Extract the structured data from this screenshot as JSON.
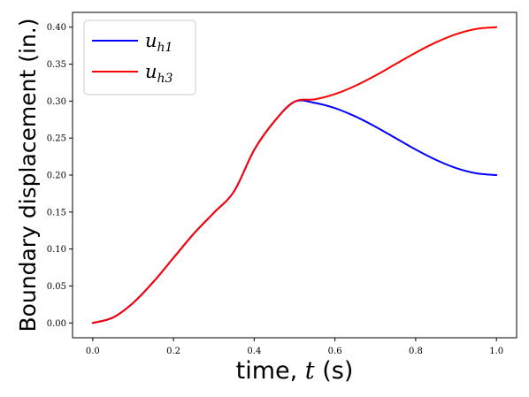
{
  "chart_data": {
    "type": "line",
    "title": "",
    "xlabel": "time, t (s)",
    "xlabel_parts": {
      "prefix": "time, ",
      "var": "t",
      "suffix": " (s)"
    },
    "ylabel": "Boundary displacement (in.)",
    "xlim": [
      0.0,
      1.0
    ],
    "ylim": [
      0.0,
      0.4
    ],
    "xticks": [
      "0.0",
      "0.2",
      "0.4",
      "0.6",
      "0.8",
      "1.0"
    ],
    "yticks": [
      "0.00",
      "0.05",
      "0.10",
      "0.15",
      "0.20",
      "0.25",
      "0.30",
      "0.35",
      "0.40"
    ],
    "grid": false,
    "legend_position": "top-left",
    "series": [
      {
        "name": "u_h1",
        "legend_base": "u",
        "legend_sub": "h1",
        "color": "#0000ff",
        "x": [
          0.0,
          0.05,
          0.1,
          0.15,
          0.2,
          0.25,
          0.3,
          0.35,
          0.4,
          0.45,
          0.5,
          0.55,
          0.6,
          0.65,
          0.7,
          0.75,
          0.8,
          0.85,
          0.9,
          0.95,
          1.0
        ],
        "y": [
          0.0,
          0.0073,
          0.0271,
          0.0554,
          0.088,
          0.1206,
          0.149,
          0.1779,
          0.234,
          0.2727,
          0.2993,
          0.2976,
          0.2905,
          0.2794,
          0.2655,
          0.25,
          0.2345,
          0.2206,
          0.2095,
          0.2024,
          0.2
        ]
      },
      {
        "name": "u_h3",
        "legend_base": "u",
        "legend_sub": "h3",
        "color": "#ff0000",
        "x": [
          0.0,
          0.05,
          0.1,
          0.15,
          0.2,
          0.25,
          0.3,
          0.35,
          0.4,
          0.45,
          0.5,
          0.55,
          0.6,
          0.65,
          0.7,
          0.75,
          0.8,
          0.85,
          0.9,
          0.95,
          1.0
        ],
        "y": [
          0.0,
          0.0073,
          0.0271,
          0.0554,
          0.088,
          0.1206,
          0.149,
          0.1779,
          0.234,
          0.2727,
          0.2993,
          0.3024,
          0.3095,
          0.3206,
          0.3345,
          0.35,
          0.3655,
          0.3794,
          0.3905,
          0.3976,
          0.4
        ]
      }
    ]
  }
}
